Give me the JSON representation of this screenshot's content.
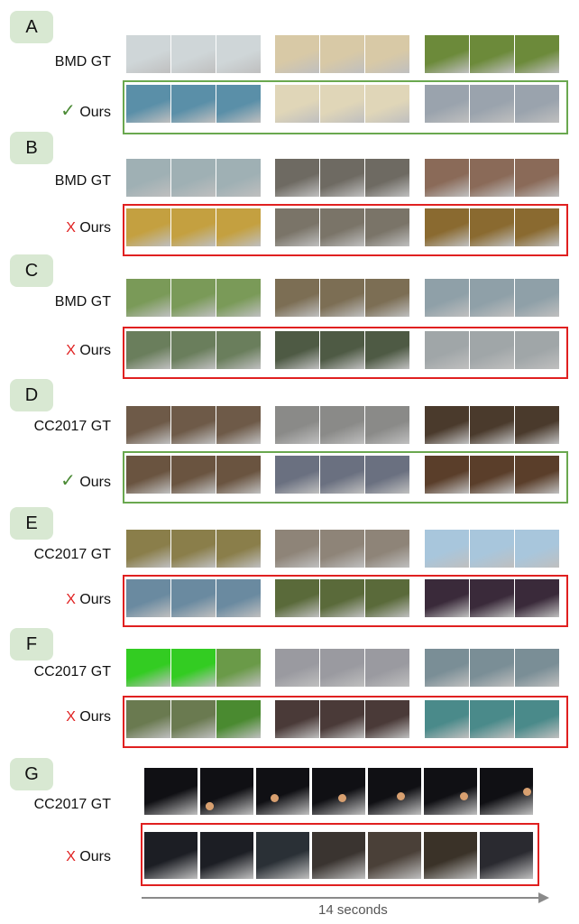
{
  "sections": [
    {
      "letter": "A",
      "gt_label": "BMD GT",
      "ours_mark": "✓",
      "ours_text": "Ours",
      "result": "success"
    },
    {
      "letter": "B",
      "gt_label": "BMD GT",
      "ours_mark": "X",
      "ours_text": "Ours",
      "result": "failure"
    },
    {
      "letter": "C",
      "gt_label": "BMD GT",
      "ours_mark": "X",
      "ours_text": "Ours",
      "result": "failure"
    },
    {
      "letter": "D",
      "gt_label": "CC2017 GT",
      "ours_mark": "✓",
      "ours_text": "Ours",
      "result": "success"
    },
    {
      "letter": "E",
      "gt_label": "CC2017 GT",
      "ours_mark": "X",
      "ours_text": "Ours",
      "result": "failure"
    },
    {
      "letter": "F",
      "gt_label": "CC2017 GT",
      "ours_mark": "X",
      "ours_text": "Ours",
      "result": "failure"
    },
    {
      "letter": "G",
      "gt_label": "CC2017 GT",
      "ours_mark": "X",
      "ours_text": "Ours",
      "result": "failure"
    }
  ],
  "timeline": {
    "label": "14 seconds"
  },
  "colors": {
    "success": "#6aa84f",
    "failure": "#e02020",
    "badge_bg": "#d8e8d2",
    "arrow": "#8a8a8a"
  },
  "thumb_colors": {
    "A": {
      "gt": [
        [
          "#cfd6d8",
          "#cfd6d8",
          "#cfd6d8"
        ],
        [
          "#d8c9a6",
          "#d8c9a6",
          "#d8c9a6"
        ],
        [
          "#6c8a3a",
          "#6c8a3a",
          "#6c8a3a"
        ]
      ],
      "ours": [
        [
          "#5a8fa8",
          "#5a8fa8",
          "#5a8fa8"
        ],
        [
          "#e0d6b8",
          "#e0d6b8",
          "#e0d6b8"
        ],
        [
          "#9aa3ad",
          "#9aa3ad",
          "#9aa3ad"
        ]
      ]
    },
    "B": {
      "gt": [
        [
          "#9fb0b4",
          "#9fb0b4",
          "#9fb0b4"
        ],
        [
          "#6e6a62",
          "#6e6a62",
          "#6e6a62"
        ],
        [
          "#8a6a58",
          "#8a6a58",
          "#8a6a58"
        ]
      ],
      "ours": [
        [
          "#c4a040",
          "#c4a040",
          "#c4a040"
        ],
        [
          "#7a7468",
          "#7a7468",
          "#7a7468"
        ],
        [
          "#8a6a30",
          "#8a6a30",
          "#8a6a30"
        ]
      ]
    },
    "C": {
      "gt": [
        [
          "#7a9a58",
          "#7a9a58",
          "#7a9a58"
        ],
        [
          "#7c6e54",
          "#7c6e54",
          "#7c6e54"
        ],
        [
          "#8fa0a8",
          "#8fa0a8",
          "#8fa0a8"
        ]
      ],
      "ours": [
        [
          "#6a7e5c",
          "#6a7e5c",
          "#6a7e5c"
        ],
        [
          "#4e5a44",
          "#4e5a44",
          "#4e5a44"
        ],
        [
          "#a0a6a8",
          "#a0a6a8",
          "#a0a6a8"
        ]
      ]
    },
    "D": {
      "gt": [
        [
          "#6e5a48",
          "#6e5a48",
          "#6e5a48"
        ],
        [
          "#8a8a88",
          "#8a8a88",
          "#8a8a88"
        ],
        [
          "#4a3a2c",
          "#4a3a2c",
          "#4a3a2c"
        ]
      ],
      "ours": [
        [
          "#6a5440",
          "#6a5440",
          "#6a5440"
        ],
        [
          "#6a7080",
          "#6a7080",
          "#6a7080"
        ],
        [
          "#5a3e2a",
          "#5a3e2a",
          "#5a3e2a"
        ]
      ]
    },
    "E": {
      "gt": [
        [
          "#8a7e4a",
          "#8a7e4a",
          "#8a7e4a"
        ],
        [
          "#8e8478",
          "#8e8478",
          "#8e8478"
        ],
        [
          "#a8c6dc",
          "#a8c6dc",
          "#a8c6dc"
        ]
      ],
      "ours": [
        [
          "#6a8aa0",
          "#6a8aa0",
          "#6a8aa0"
        ],
        [
          "#5a6a3a",
          "#5a6a3a",
          "#5a6a3a"
        ],
        [
          "#3a2a3a",
          "#3a2a3a",
          "#3a2a3a"
        ]
      ]
    },
    "F": {
      "gt": [
        [
          "#33cc22",
          "#33cc22",
          "#6a9a48"
        ],
        [
          "#9a9aa0",
          "#9a9aa0",
          "#9a9aa0"
        ],
        [
          "#7a8e96",
          "#7a8e96",
          "#7a8e96"
        ]
      ],
      "ours": [
        [
          "#6a7a50",
          "#6a7a50",
          "#4a8a30"
        ],
        [
          "#4a3a38",
          "#4a3a38",
          "#4a3a38"
        ],
        [
          "#4a8a8a",
          "#4a8a8a",
          "#4a8a8a"
        ]
      ]
    },
    "G": {
      "gt": [
        "#101014",
        "#101014",
        "#101014",
        "#101014",
        "#101014",
        "#101014",
        "#101014"
      ],
      "ours": [
        "#1c1e24",
        "#1c1e24",
        "#2a3036",
        "#3a3430",
        "#4a4038",
        "#3a3228",
        "#2a2a30"
      ]
    }
  }
}
